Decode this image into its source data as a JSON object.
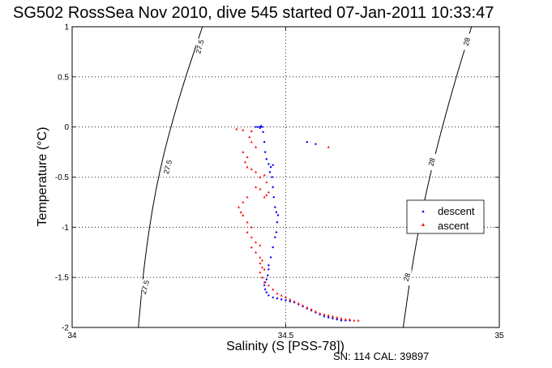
{
  "chart_data": {
    "type": "scatter",
    "title": "SG502 RossSea Nov 2010, dive 545 started 07-Jan-2011 10:33:47",
    "xlabel": "Salinity (S [PSS-78])",
    "ylabel": "Temperature (°C)",
    "xlim": [
      34,
      35
    ],
    "ylim": [
      -2,
      1
    ],
    "xticks": [
      34,
      34.5,
      35
    ],
    "xtick_labels": [
      "34",
      "34.5",
      "35"
    ],
    "yticks": [
      -2,
      -1.5,
      -1,
      -0.5,
      0,
      0.5,
      1
    ],
    "ytick_labels": [
      "-2",
      "-1.5",
      "-1",
      "-0.5",
      "0",
      "0.5",
      "1"
    ],
    "grid": true,
    "legend_position": "right",
    "footer": "SN: 114  CAL: 39897",
    "isopycnals": [
      {
        "label": "27.5",
        "points": [
          [
            34.305,
            1.0
          ],
          [
            34.25,
            0.3
          ],
          [
            34.2,
            -0.5
          ],
          [
            34.17,
            -1.3
          ],
          [
            34.155,
            -2.0
          ]
        ],
        "label_positions": [
          [
            34.3,
            0.8
          ],
          [
            34.225,
            -0.4
          ],
          [
            34.172,
            -1.6
          ]
        ]
      },
      {
        "label": "28",
        "points": [
          [
            34.935,
            1.0
          ],
          [
            34.885,
            0.3
          ],
          [
            34.83,
            -0.6
          ],
          [
            34.795,
            -1.4
          ],
          [
            34.775,
            -2.0
          ]
        ],
        "label_positions": [
          [
            34.925,
            0.85
          ],
          [
            34.843,
            -0.35
          ],
          [
            34.785,
            -1.5
          ]
        ]
      }
    ],
    "series": [
      {
        "name": "descent",
        "color": "#0000ff",
        "marker": "point",
        "points": [
          [
            34.43,
            0.0
          ],
          [
            34.435,
            0.0
          ],
          [
            34.44,
            0.0
          ],
          [
            34.442,
            0.01
          ],
          [
            34.445,
            0.0
          ],
          [
            34.44,
            -0.01
          ],
          [
            34.447,
            -0.05
          ],
          [
            34.45,
            -0.15
          ],
          [
            34.452,
            -0.25
          ],
          [
            34.455,
            -0.32
          ],
          [
            34.46,
            -0.37
          ],
          [
            34.465,
            -0.4
          ],
          [
            34.47,
            -0.38
          ],
          [
            34.463,
            -0.45
          ],
          [
            34.468,
            -0.5
          ],
          [
            34.47,
            -0.6
          ],
          [
            34.472,
            -0.7
          ],
          [
            34.475,
            -0.8
          ],
          [
            34.478,
            -0.85
          ],
          [
            34.482,
            -0.88
          ],
          [
            34.48,
            -0.95
          ],
          [
            34.478,
            -1.05
          ],
          [
            34.475,
            -1.1
          ],
          [
            34.47,
            -1.2
          ],
          [
            34.465,
            -1.3
          ],
          [
            34.46,
            -1.38
          ],
          [
            34.46,
            -1.42
          ],
          [
            34.458,
            -1.48
          ],
          [
            34.455,
            -1.52
          ],
          [
            34.452,
            -1.55
          ],
          [
            34.45,
            -1.58
          ],
          [
            34.452,
            -1.62
          ],
          [
            34.455,
            -1.65
          ],
          [
            34.46,
            -1.68
          ],
          [
            34.47,
            -1.7
          ],
          [
            34.48,
            -1.71
          ],
          [
            34.49,
            -1.72
          ],
          [
            34.5,
            -1.73
          ],
          [
            34.51,
            -1.74
          ],
          [
            34.52,
            -1.75
          ],
          [
            34.53,
            -1.77
          ],
          [
            34.54,
            -1.79
          ],
          [
            34.55,
            -1.81
          ],
          [
            34.56,
            -1.83
          ],
          [
            34.57,
            -1.85
          ],
          [
            34.58,
            -1.87
          ],
          [
            34.59,
            -1.89
          ],
          [
            34.6,
            -1.9
          ],
          [
            34.61,
            -1.91
          ],
          [
            34.62,
            -1.92
          ],
          [
            34.63,
            -1.93
          ],
          [
            34.64,
            -1.93
          ],
          [
            34.65,
            -1.93
          ],
          [
            34.55,
            -0.15
          ],
          [
            34.57,
            -0.17
          ]
        ]
      },
      {
        "name": "ascent",
        "color": "#ff0000",
        "marker": "triangle",
        "points": [
          [
            34.385,
            -0.02
          ],
          [
            34.4,
            -0.03
          ],
          [
            34.42,
            -0.04
          ],
          [
            34.415,
            -0.1
          ],
          [
            34.42,
            -0.15
          ],
          [
            34.43,
            -0.2
          ],
          [
            34.4,
            -0.25
          ],
          [
            34.41,
            -0.3
          ],
          [
            34.405,
            -0.35
          ],
          [
            34.41,
            -0.4
          ],
          [
            34.42,
            -0.42
          ],
          [
            34.43,
            -0.45
          ],
          [
            34.44,
            -0.5
          ],
          [
            34.45,
            -0.48
          ],
          [
            34.455,
            -0.55
          ],
          [
            34.43,
            -0.6
          ],
          [
            34.44,
            -0.62
          ],
          [
            34.46,
            -0.65
          ],
          [
            34.45,
            -0.7
          ],
          [
            34.455,
            -0.68
          ],
          [
            34.41,
            -0.7
          ],
          [
            34.4,
            -0.75
          ],
          [
            34.39,
            -0.8
          ],
          [
            34.395,
            -0.85
          ],
          [
            34.4,
            -0.88
          ],
          [
            34.41,
            -0.95
          ],
          [
            34.42,
            -1.0
          ],
          [
            34.41,
            -1.05
          ],
          [
            34.42,
            -1.1
          ],
          [
            34.43,
            -1.15
          ],
          [
            34.44,
            -1.18
          ],
          [
            34.42,
            -1.2
          ],
          [
            34.43,
            -1.25
          ],
          [
            34.44,
            -1.3
          ],
          [
            34.445,
            -1.33
          ],
          [
            34.44,
            -1.36
          ],
          [
            34.445,
            -1.4
          ],
          [
            34.45,
            -1.42
          ],
          [
            34.44,
            -1.45
          ],
          [
            34.445,
            -1.5
          ],
          [
            34.45,
            -1.55
          ],
          [
            34.46,
            -1.58
          ],
          [
            34.47,
            -1.62
          ],
          [
            34.48,
            -1.66
          ],
          [
            34.49,
            -1.68
          ],
          [
            34.5,
            -1.7
          ],
          [
            34.51,
            -1.72
          ],
          [
            34.52,
            -1.74
          ],
          [
            34.53,
            -1.76
          ],
          [
            34.54,
            -1.78
          ],
          [
            34.55,
            -1.8
          ],
          [
            34.56,
            -1.82
          ],
          [
            34.57,
            -1.84
          ],
          [
            34.58,
            -1.86
          ],
          [
            34.59,
            -1.87
          ],
          [
            34.6,
            -1.88
          ],
          [
            34.61,
            -1.89
          ],
          [
            34.62,
            -1.9
          ],
          [
            34.63,
            -1.91
          ],
          [
            34.64,
            -1.92
          ],
          [
            34.65,
            -1.92
          ],
          [
            34.66,
            -1.93
          ],
          [
            34.67,
            -1.93
          ],
          [
            34.6,
            -0.2
          ]
        ]
      }
    ]
  }
}
